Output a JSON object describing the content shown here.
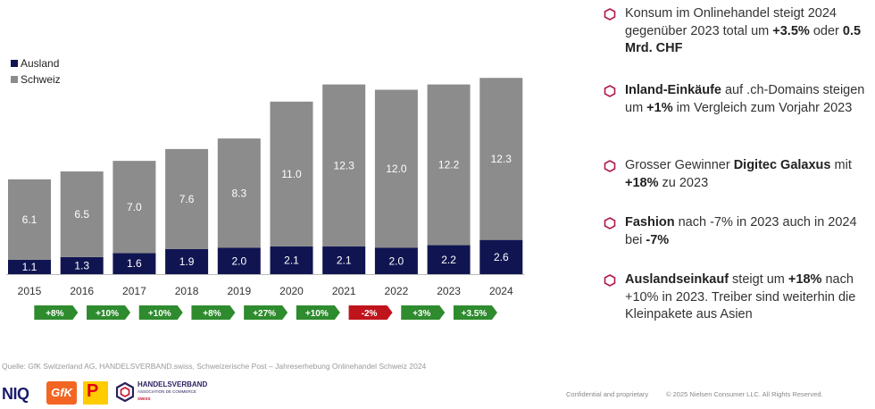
{
  "chart_data": {
    "type": "bar",
    "stacked": true,
    "categories": [
      "2015",
      "2016",
      "2017",
      "2018",
      "2019",
      "2020",
      "2021",
      "2022",
      "2023",
      "2024"
    ],
    "series": [
      {
        "name": "Ausland",
        "color": "#101551",
        "values": [
          1.1,
          1.3,
          1.6,
          1.9,
          2.0,
          2.1,
          2.1,
          2.0,
          2.2,
          2.6
        ],
        "labels": [
          "1.1",
          "1.3",
          "1.6",
          "1.9",
          "2.0",
          "2.1",
          "2.1",
          "2.0",
          "2.2",
          "2.6"
        ]
      },
      {
        "name": "Schweiz",
        "color": "#8c8c8c",
        "values": [
          6.1,
          6.5,
          7.0,
          7.6,
          8.3,
          11.0,
          12.3,
          12.0,
          12.2,
          12.3
        ],
        "labels": [
          "6.1",
          "6.5",
          "7.0",
          "7.6",
          "8.3",
          "11.0",
          "12.3",
          "12.0",
          "12.2",
          "12.3"
        ]
      }
    ],
    "growth": [
      {
        "label": "+8%",
        "color": "#2e8b2e"
      },
      {
        "label": "+10%",
        "color": "#2e8b2e"
      },
      {
        "label": "+10%",
        "color": "#2e8b2e"
      },
      {
        "label": "+8%",
        "color": "#2e8b2e"
      },
      {
        "label": "+27%",
        "color": "#2e8b2e"
      },
      {
        "label": "+10%",
        "color": "#2e8b2e"
      },
      {
        "label": "-2%",
        "color": "#c0141c"
      },
      {
        "label": "+3%",
        "color": "#2e8b2e"
      },
      {
        "label": "+3.5%",
        "color": "#2e8b2e"
      }
    ],
    "legend_position": "top-left"
  },
  "legend": {
    "ausland": "Ausland",
    "schweiz": "Schweiz"
  },
  "bullets": [
    {
      "parts": [
        {
          "t": "Konsum im Onlinehandel steigt 2024 gegenüber 2023 total um ",
          "b": false
        },
        {
          "t": "+3.5%",
          "b": true
        },
        {
          "t": " oder ",
          "b": false
        },
        {
          "t": "0.5 Mrd. CHF",
          "b": true
        }
      ]
    },
    {
      "parts": [
        {
          "t": "Inland-Einkäufe",
          "b": true
        },
        {
          "t": " auf .ch-Domains steigen um ",
          "b": false
        },
        {
          "t": "+1%",
          "b": true
        },
        {
          "t": " im Vergleich zum Vorjahr 2023",
          "b": false
        }
      ]
    },
    {
      "parts": [
        {
          "t": "Grosser Gewinner ",
          "b": false
        },
        {
          "t": "Digitec Galaxus",
          "b": true
        },
        {
          "t": " mit ",
          "b": false
        },
        {
          "t": "+18%",
          "b": true
        },
        {
          "t": " zu 2023",
          "b": false
        }
      ]
    },
    {
      "parts": [
        {
          "t": "Fashion",
          "b": true
        },
        {
          "t": " nach -7% in 2023 auch in 2024 bei ",
          "b": false
        },
        {
          "t": "-7%",
          "b": true
        }
      ]
    },
    {
      "parts": [
        {
          "t": "Auslandseinkauf",
          "b": true
        },
        {
          "t": " steigt um ",
          "b": false
        },
        {
          "t": "+18%",
          "b": true
        },
        {
          "t": " nach +10% in 2023. Treiber sind weiterhin die Kleinpakete aus Asien",
          "b": false
        }
      ]
    }
  ],
  "source": "Quelle: GfK Switzerland AG, HANDELSVERBAND.swiss, Schweizerische Post – Jahreserhebung Onlinehandel Schweiz 2024",
  "footer": {
    "niq": "NIQ",
    "gfk": "GfK",
    "post": "P",
    "hv_line1": "HANDELSVERBAND",
    "hv_line2": "ASSOCIATION DE COMMERCE",
    "hv_line3": "SWISS",
    "confidential": "Confidential and proprietary",
    "copyright": "© 2025 Nielsen Consumer LLC. All Rights Reserved."
  },
  "colors": {
    "hex_outline": "#b0174e"
  }
}
